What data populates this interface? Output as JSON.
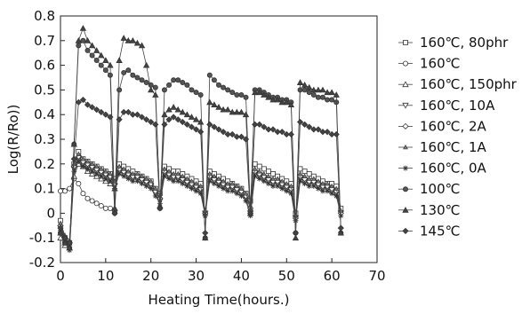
{
  "chart_data": {
    "type": "line",
    "title": "",
    "xlabel": "Heating Time(hours.)",
    "ylabel": "Log(R/Ro))",
    "xlim": [
      0,
      70
    ],
    "ylim": [
      -0.2,
      0.8
    ],
    "xticks": [
      "0",
      "10",
      "20",
      "30",
      "40",
      "50",
      "60",
      "70"
    ],
    "yticks": [
      "-0.2",
      "-0.1",
      "0",
      "0.1",
      "0.2",
      "0.3",
      "0.4",
      "0.5",
      "0.6",
      "0.7",
      "0.8"
    ],
    "legend_position": "right",
    "grid": false,
    "series": [
      {
        "name": "160℃, 80phr",
        "marker": "square",
        "x": [
          0,
          1,
          2,
          3,
          4,
          5,
          6,
          7,
          8,
          9,
          10,
          11,
          12,
          13,
          14,
          15,
          16,
          17,
          18,
          19,
          20,
          21,
          22,
          23,
          24,
          25,
          26,
          27,
          28,
          29,
          30,
          31,
          32,
          33,
          34,
          35,
          36,
          37,
          38,
          39,
          40,
          41,
          42,
          43,
          44,
          45,
          46,
          47,
          48,
          49,
          50,
          51,
          52,
          53,
          54,
          55,
          56,
          57,
          58,
          59,
          60,
          61,
          62
        ],
        "y": [
          -0.03,
          -0.1,
          -0.12,
          0.2,
          0.25,
          0.22,
          0.21,
          0.2,
          0.19,
          0.18,
          0.17,
          0.16,
          0.14,
          0.2,
          0.19,
          0.18,
          0.17,
          0.16,
          0.15,
          0.14,
          0.13,
          0.1,
          0.08,
          0.19,
          0.18,
          0.17,
          0.17,
          0.16,
          0.15,
          0.14,
          0.13,
          0.12,
          0.0,
          0.17,
          0.16,
          0.15,
          0.14,
          0.13,
          0.12,
          0.11,
          0.1,
          0.08,
          0.05,
          0.2,
          0.19,
          0.18,
          0.17,
          0.16,
          0.15,
          0.14,
          0.13,
          0.12,
          0.0,
          0.18,
          0.17,
          0.16,
          0.15,
          0.14,
          0.13,
          0.12,
          0.12,
          0.11,
          0.02
        ]
      },
      {
        "name": "160℃",
        "marker": "circle",
        "x": [
          0,
          1,
          2,
          3,
          4,
          5,
          6,
          7,
          8,
          9,
          10,
          11,
          12
        ],
        "y": [
          0.09,
          0.09,
          0.1,
          0.14,
          0.12,
          0.08,
          0.06,
          0.05,
          0.04,
          0.03,
          0.02,
          0.02,
          0.01
        ]
      },
      {
        "name": "160℃, 150phr",
        "marker": "triangle-up",
        "x": [
          0,
          1,
          2,
          3,
          4,
          5,
          6,
          7,
          8,
          9,
          10,
          11,
          12
        ],
        "y": [
          -0.1,
          -0.13,
          -0.14,
          0.15,
          0.2,
          0.19,
          0.17,
          0.16,
          0.15,
          0.14,
          0.13,
          0.12,
          0.1
        ]
      },
      {
        "name": "160℃, 10A",
        "marker": "triangle-down",
        "x": [
          0,
          1,
          2,
          3,
          4,
          5,
          6,
          7,
          8,
          9,
          10,
          11,
          12,
          13,
          14,
          15,
          16,
          17,
          18,
          19,
          20,
          21,
          22,
          23,
          24,
          25,
          26,
          27,
          28,
          29,
          30,
          31,
          32,
          33,
          34,
          35,
          36,
          37,
          38,
          39,
          40,
          41,
          42,
          43,
          44,
          45,
          46,
          47,
          48,
          49,
          50,
          51,
          52,
          53,
          54,
          55,
          56,
          57,
          58,
          59,
          60,
          61,
          62
        ],
        "y": [
          -0.06,
          -0.11,
          -0.13,
          0.18,
          0.22,
          0.2,
          0.19,
          0.18,
          0.17,
          0.16,
          0.15,
          0.14,
          0.11,
          0.17,
          0.16,
          0.15,
          0.14,
          0.14,
          0.13,
          0.12,
          0.11,
          0.08,
          0.05,
          0.16,
          0.15,
          0.14,
          0.14,
          0.13,
          0.12,
          0.11,
          0.1,
          0.09,
          0.0,
          0.14,
          0.13,
          0.12,
          0.11,
          0.1,
          0.1,
          0.09,
          0.08,
          0.06,
          0.0,
          0.16,
          0.15,
          0.14,
          0.13,
          0.12,
          0.12,
          0.11,
          0.1,
          0.09,
          -0.02,
          0.14,
          0.13,
          0.12,
          0.12,
          0.11,
          0.1,
          0.1,
          0.09,
          0.08,
          0.0
        ]
      },
      {
        "name": "160℃, 2A",
        "marker": "diamond",
        "x": [
          0,
          1,
          2,
          3,
          4,
          5,
          6,
          7,
          8,
          9,
          10,
          11,
          12,
          13,
          14,
          15,
          16,
          17,
          18,
          19,
          20,
          21,
          22,
          23,
          24,
          25,
          26,
          27,
          28,
          29,
          30,
          31,
          32,
          33,
          34,
          35,
          36,
          37,
          38,
          39,
          40,
          41,
          42,
          43,
          44,
          45,
          46,
          47,
          48,
          49,
          50,
          51,
          52,
          53,
          54,
          55,
          56,
          57,
          58,
          59,
          60,
          61,
          62
        ],
        "y": [
          -0.05,
          -0.1,
          -0.12,
          0.19,
          0.23,
          0.21,
          0.2,
          0.19,
          0.18,
          0.17,
          0.16,
          0.15,
          0.12,
          0.18,
          0.17,
          0.16,
          0.15,
          0.15,
          0.14,
          0.13,
          0.12,
          0.09,
          0.06,
          0.17,
          0.16,
          0.15,
          0.15,
          0.14,
          0.13,
          0.12,
          0.11,
          0.1,
          0.0,
          0.15,
          0.14,
          0.13,
          0.12,
          0.11,
          0.11,
          0.1,
          0.09,
          0.07,
          0.02,
          0.17,
          0.16,
          0.15,
          0.14,
          0.13,
          0.13,
          0.12,
          0.11,
          0.1,
          -0.02,
          0.15,
          0.14,
          0.13,
          0.13,
          0.12,
          0.11,
          0.11,
          0.1,
          0.09,
          0.0
        ]
      },
      {
        "name": "160℃, 1A",
        "marker": "triangle-up-small",
        "x": [
          0,
          1,
          2,
          3,
          4,
          5,
          6,
          7,
          8,
          9,
          10,
          11,
          12,
          13,
          14,
          15,
          16,
          17,
          18,
          19,
          20,
          21,
          22,
          23,
          24,
          25,
          26,
          27,
          28,
          29,
          30,
          31,
          32,
          33,
          34,
          35,
          36,
          37,
          38,
          39,
          40,
          41,
          42,
          43,
          44,
          45,
          46,
          47,
          48,
          49,
          50,
          51,
          52,
          53,
          54,
          55,
          56,
          57,
          58,
          59,
          60,
          61,
          62
        ],
        "y": [
          -0.04,
          -0.09,
          -0.11,
          0.2,
          0.24,
          0.22,
          0.21,
          0.2,
          0.19,
          0.18,
          0.17,
          0.16,
          0.13,
          0.19,
          0.18,
          0.17,
          0.16,
          0.16,
          0.15,
          0.14,
          0.13,
          0.1,
          0.07,
          0.18,
          0.17,
          0.16,
          0.16,
          0.15,
          0.14,
          0.13,
          0.12,
          0.11,
          0.01,
          0.16,
          0.15,
          0.14,
          0.13,
          0.12,
          0.12,
          0.11,
          0.1,
          0.08,
          0.03,
          0.18,
          0.17,
          0.16,
          0.15,
          0.14,
          0.14,
          0.13,
          0.12,
          0.11,
          -0.01,
          0.16,
          0.15,
          0.14,
          0.14,
          0.13,
          0.12,
          0.12,
          0.11,
          0.1,
          0.01
        ]
      },
      {
        "name": "160℃, 0A",
        "marker": "asterisk",
        "x": [
          0,
          1,
          2,
          3,
          4,
          5,
          6,
          7,
          8,
          9,
          10,
          11,
          12,
          13,
          14,
          15,
          16,
          17,
          18,
          19,
          20,
          21,
          22,
          23,
          24,
          25,
          26,
          27,
          28,
          29,
          30,
          31,
          32,
          33,
          34,
          35,
          36,
          37,
          38,
          39,
          40,
          41,
          42,
          43,
          44,
          45,
          46,
          47,
          48,
          49,
          50,
          51,
          52,
          53,
          54,
          55,
          56,
          57,
          58,
          59,
          60,
          61,
          62
        ],
        "y": [
          -0.07,
          -0.12,
          -0.15,
          0.17,
          0.21,
          0.19,
          0.18,
          0.17,
          0.16,
          0.15,
          0.14,
          0.13,
          0.1,
          0.16,
          0.15,
          0.14,
          0.13,
          0.13,
          0.12,
          0.11,
          0.1,
          0.07,
          0.04,
          0.15,
          0.14,
          0.13,
          0.13,
          0.12,
          0.11,
          0.1,
          0.09,
          0.08,
          -0.01,
          0.13,
          0.12,
          0.11,
          0.1,
          0.09,
          0.09,
          0.08,
          0.07,
          0.05,
          -0.01,
          0.15,
          0.14,
          0.13,
          0.12,
          0.11,
          0.11,
          0.1,
          0.09,
          0.08,
          -0.03,
          0.13,
          0.12,
          0.11,
          0.11,
          0.1,
          0.09,
          0.09,
          0.08,
          0.07,
          -0.01
        ]
      },
      {
        "name": "100℃",
        "marker": "circle-filled",
        "x": [
          0,
          1,
          2,
          3,
          4,
          5,
          6,
          7,
          8,
          9,
          10,
          11,
          12,
          13,
          14,
          15,
          16,
          17,
          18,
          19,
          20,
          21,
          22,
          23,
          24,
          25,
          26,
          27,
          28,
          29,
          30,
          31,
          32,
          33,
          34,
          35,
          36,
          37,
          38,
          39,
          40,
          41,
          42,
          43,
          44,
          45,
          46,
          47,
          48,
          49,
          50,
          51,
          52,
          53,
          54,
          55,
          56,
          57,
          58,
          59,
          60,
          61,
          62
        ],
        "y": [
          -0.08,
          -0.12,
          -0.14,
          0.28,
          0.68,
          0.7,
          0.66,
          0.64,
          0.62,
          0.6,
          0.58,
          0.56,
          0.0,
          0.5,
          0.57,
          0.58,
          0.56,
          0.55,
          0.54,
          0.53,
          0.52,
          0.51,
          0.02,
          0.5,
          0.52,
          0.54,
          0.54,
          0.53,
          0.52,
          0.5,
          0.49,
          0.48,
          -0.1,
          0.56,
          0.54,
          0.52,
          0.51,
          0.5,
          0.49,
          0.48,
          0.48,
          0.47,
          0.01,
          0.5,
          0.5,
          0.49,
          0.48,
          0.47,
          0.47,
          0.46,
          0.46,
          0.45,
          -0.08,
          0.5,
          0.5,
          0.49,
          0.48,
          0.47,
          0.47,
          0.46,
          0.46,
          0.45,
          -0.08
        ]
      },
      {
        "name": "130℃",
        "marker": "triangle-filled",
        "x": [
          0,
          1,
          2,
          3,
          4,
          5,
          6,
          7,
          8,
          9,
          10,
          11,
          12,
          13,
          14,
          15,
          16,
          17,
          18,
          19,
          20,
          21,
          22,
          23,
          24,
          25,
          26,
          27,
          28,
          29,
          30,
          31,
          32,
          33,
          34,
          35,
          36,
          37,
          38,
          39,
          40,
          41,
          42,
          43,
          44,
          45,
          46,
          47,
          48,
          49,
          50,
          51,
          52,
          53,
          54,
          55,
          56,
          57,
          58,
          59,
          60,
          61,
          62
        ],
        "y": [
          -0.08,
          -0.12,
          -0.14,
          0.28,
          0.7,
          0.75,
          0.7,
          0.68,
          0.66,
          0.64,
          0.62,
          0.6,
          0.02,
          0.62,
          0.71,
          0.7,
          0.7,
          0.69,
          0.68,
          0.6,
          0.5,
          0.48,
          0.03,
          0.4,
          0.42,
          0.43,
          0.42,
          0.41,
          0.4,
          0.39,
          0.38,
          0.37,
          -0.1,
          0.45,
          0.44,
          0.43,
          0.42,
          0.42,
          0.41,
          0.41,
          0.41,
          0.4,
          0.0,
          0.49,
          0.49,
          0.48,
          0.47,
          0.46,
          0.46,
          0.45,
          0.45,
          0.44,
          -0.1,
          0.53,
          0.52,
          0.51,
          0.5,
          0.5,
          0.5,
          0.49,
          0.49,
          0.48,
          -0.08
        ]
      },
      {
        "name": "145℃",
        "marker": "diamond-filled",
        "x": [
          0,
          1,
          2,
          3,
          4,
          5,
          6,
          7,
          8,
          9,
          10,
          11,
          12,
          13,
          14,
          15,
          16,
          17,
          18,
          19,
          20,
          21,
          22,
          23,
          24,
          25,
          26,
          27,
          28,
          29,
          30,
          31,
          32,
          33,
          34,
          35,
          36,
          37,
          38,
          39,
          40,
          41,
          42,
          43,
          44,
          45,
          46,
          47,
          48,
          49,
          50,
          51,
          52,
          53,
          54,
          55,
          56,
          57,
          58,
          59,
          60,
          61,
          62
        ],
        "y": [
          -0.06,
          -0.1,
          -0.12,
          0.22,
          0.45,
          0.46,
          0.44,
          0.43,
          0.42,
          0.41,
          0.4,
          0.39,
          0.0,
          0.38,
          0.41,
          0.41,
          0.4,
          0.4,
          0.39,
          0.38,
          0.37,
          0.36,
          0.02,
          0.36,
          0.38,
          0.39,
          0.38,
          0.37,
          0.36,
          0.35,
          0.34,
          0.33,
          -0.08,
          0.36,
          0.35,
          0.34,
          0.33,
          0.32,
          0.32,
          0.31,
          0.31,
          0.3,
          0.0,
          0.36,
          0.36,
          0.35,
          0.34,
          0.34,
          0.33,
          0.33,
          0.32,
          0.32,
          -0.08,
          0.37,
          0.36,
          0.35,
          0.34,
          0.34,
          0.33,
          0.33,
          0.32,
          0.32,
          -0.06
        ]
      }
    ]
  }
}
